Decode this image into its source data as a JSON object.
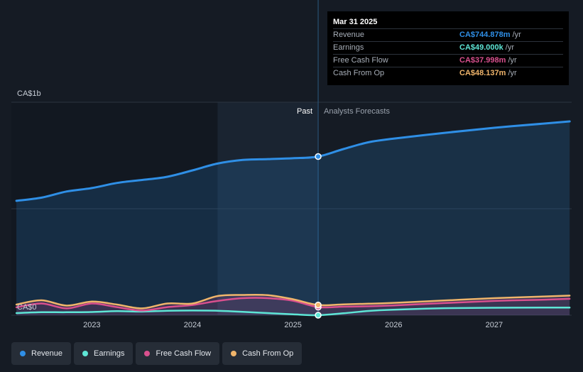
{
  "chart_data": {
    "type": "line",
    "x": [
      2022.25,
      2022.5,
      2022.75,
      2023.0,
      2023.25,
      2023.5,
      2023.75,
      2024.0,
      2024.25,
      2024.5,
      2024.75,
      2025.0,
      2025.25,
      2025.5,
      2025.75,
      2026.0,
      2026.5,
      2027.0,
      2027.5,
      2027.75
    ],
    "series": [
      {
        "name": "Revenue",
        "color": "#2f8fe6",
        "values": [
          537,
          552,
          581,
          597,
          621,
          635,
          650,
          680,
          712,
          729,
          733,
          737,
          745,
          780,
          812,
          829,
          856,
          880,
          900,
          910
        ]
      },
      {
        "name": "Earnings",
        "color": "#5ee6d6",
        "values": [
          10,
          14,
          14,
          15,
          19,
          17,
          21,
          22,
          21,
          16,
          10,
          4,
          0.049,
          9,
          20,
          26,
          33,
          35,
          36,
          36
        ]
      },
      {
        "name": "Free Cash Flow",
        "color": "#d9508e",
        "values": [
          37,
          55,
          32,
          55,
          38,
          22,
          38,
          48,
          67,
          80,
          80,
          68,
          38,
          40,
          42,
          46,
          57,
          67,
          73,
          77
        ]
      },
      {
        "name": "Cash From Op",
        "color": "#f0b56b",
        "values": [
          50,
          70,
          45,
          64,
          50,
          32,
          55,
          55,
          90,
          95,
          94,
          75,
          48,
          51,
          54,
          58,
          69,
          80,
          88,
          92
        ]
      }
    ],
    "past_end_x": 2025.25,
    "forecast_start_x": 2025.25,
    "highlight_start_x": 2024.25,
    "ylim": [
      0,
      1000
    ],
    "xlim": [
      2022.2,
      2027.77
    ],
    "y_ticks": [
      {
        "value": 1000,
        "label": "CA$1b"
      },
      {
        "value": 500,
        "label": ""
      },
      {
        "value": 0,
        "label": "CA$0"
      }
    ],
    "x_ticks": [
      {
        "value": 2023,
        "label": "2023"
      },
      {
        "value": 2024,
        "label": "2024"
      },
      {
        "value": 2025,
        "label": "2025"
      },
      {
        "value": 2026,
        "label": "2026"
      },
      {
        "value": 2027,
        "label": "2027"
      }
    ],
    "past_label": "Past",
    "forecast_label": "Analysts Forecasts"
  },
  "tooltip": {
    "date": "Mar 31 2025",
    "rows": [
      {
        "name": "Revenue",
        "value": "CA$744.878m",
        "unit": "/yr",
        "color": "#2f8fe6"
      },
      {
        "name": "Earnings",
        "value": "CA$49.000k",
        "unit": "/yr",
        "color": "#5ee6d6"
      },
      {
        "name": "Free Cash Flow",
        "value": "CA$37.998m",
        "unit": "/yr",
        "color": "#d9508e"
      },
      {
        "name": "Cash From Op",
        "value": "CA$48.137m",
        "unit": "/yr",
        "color": "#f0b56b"
      }
    ]
  },
  "legend": [
    {
      "label": "Revenue",
      "color": "#2f8fe6"
    },
    {
      "label": "Earnings",
      "color": "#5ee6d6"
    },
    {
      "label": "Free Cash Flow",
      "color": "#d9508e"
    },
    {
      "label": "Cash From Op",
      "color": "#f0b56b"
    }
  ]
}
